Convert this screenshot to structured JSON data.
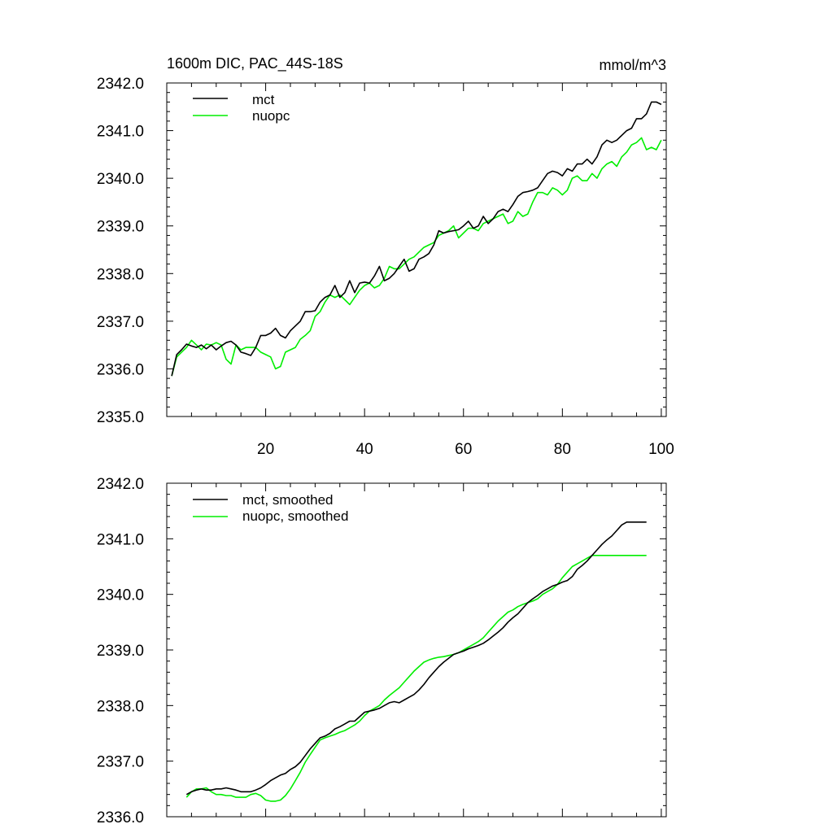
{
  "chart_data": [
    {
      "type": "line",
      "title": "1600m DIC, PAC_44S-18S",
      "units": "mmol/m^3",
      "xlim": [
        0,
        101
      ],
      "ylim": [
        2335.0,
        2342.0
      ],
      "xticks": [
        20,
        40,
        60,
        80,
        100
      ],
      "xtick_labels": [
        "20",
        "40",
        "60",
        "80",
        "100"
      ],
      "yticks": [
        2335.0,
        2336.0,
        2337.0,
        2338.0,
        2339.0,
        2340.0,
        2341.0,
        2342.0
      ],
      "ytick_labels": [
        "2335.0",
        "2336.0",
        "2337.0",
        "2338.0",
        "2339.0",
        "2340.0",
        "2341.0",
        "2342.0"
      ],
      "legend_position": "top-left",
      "series": [
        {
          "name": "mct",
          "color": "#000000",
          "x": [
            1,
            2,
            3,
            4,
            5,
            6,
            7,
            8,
            9,
            10,
            11,
            12,
            13,
            14,
            15,
            16,
            17,
            18,
            19,
            20,
            21,
            22,
            23,
            24,
            25,
            26,
            27,
            28,
            29,
            30,
            31,
            32,
            33,
            34,
            35,
            36,
            37,
            38,
            39,
            40,
            41,
            42,
            43,
            44,
            45,
            46,
            47,
            48,
            49,
            50,
            51,
            52,
            53,
            54,
            55,
            56,
            57,
            58,
            59,
            60,
            61,
            62,
            63,
            64,
            65,
            66,
            67,
            68,
            69,
            70,
            71,
            72,
            73,
            74,
            75,
            76,
            77,
            78,
            79,
            80,
            81,
            82,
            83,
            84,
            85,
            86,
            87,
            88,
            89,
            90,
            91,
            92,
            93,
            94,
            95,
            96,
            97,
            98,
            99,
            100
          ],
          "y": [
            2335.85,
            2336.3,
            2336.4,
            2336.52,
            2336.48,
            2336.45,
            2336.5,
            2336.42,
            2336.5,
            2336.4,
            2336.48,
            2336.55,
            2336.58,
            2336.5,
            2336.35,
            2336.32,
            2336.28,
            2336.45,
            2336.7,
            2336.7,
            2336.75,
            2336.85,
            2336.7,
            2336.65,
            2336.8,
            2336.9,
            2337.0,
            2337.2,
            2337.2,
            2337.22,
            2337.4,
            2337.5,
            2337.55,
            2337.75,
            2337.5,
            2337.6,
            2337.85,
            2337.6,
            2337.8,
            2337.82,
            2337.8,
            2337.95,
            2338.15,
            2337.85,
            2337.9,
            2338.0,
            2338.15,
            2338.3,
            2338.05,
            2338.1,
            2338.3,
            2338.35,
            2338.42,
            2338.6,
            2338.9,
            2338.85,
            2338.88,
            2338.9,
            2338.92,
            2339.0,
            2339.1,
            2338.95,
            2339.0,
            2339.2,
            2339.05,
            2339.15,
            2339.3,
            2339.35,
            2339.3,
            2339.45,
            2339.62,
            2339.7,
            2339.72,
            2339.75,
            2339.8,
            2339.95,
            2340.1,
            2340.15,
            2340.12,
            2340.05,
            2340.2,
            2340.15,
            2340.3,
            2340.3,
            2340.4,
            2340.3,
            2340.45,
            2340.7,
            2340.8,
            2340.75,
            2340.8,
            2340.9,
            2341.0,
            2341.05,
            2341.25,
            2341.25,
            2341.35,
            2341.6,
            2341.6,
            2341.55
          ]
        },
        {
          "name": "nuopc",
          "color": "#00ee00",
          "x": [
            1,
            2,
            3,
            4,
            5,
            6,
            7,
            8,
            9,
            10,
            11,
            12,
            13,
            14,
            15,
            16,
            17,
            18,
            19,
            20,
            21,
            22,
            23,
            24,
            25,
            26,
            27,
            28,
            29,
            30,
            31,
            32,
            33,
            34,
            35,
            36,
            37,
            38,
            39,
            40,
            41,
            42,
            43,
            44,
            45,
            46,
            47,
            48,
            49,
            50,
            51,
            52,
            53,
            54,
            55,
            56,
            57,
            58,
            59,
            60,
            61,
            62,
            63,
            64,
            65,
            66,
            67,
            68,
            69,
            70,
            71,
            72,
            73,
            74,
            75,
            76,
            77,
            78,
            79,
            80,
            81,
            82,
            83,
            84,
            85,
            86,
            87,
            88,
            89,
            90,
            91,
            92,
            93,
            94,
            95,
            96,
            97,
            98,
            99,
            100
          ],
          "y": [
            2335.85,
            2336.25,
            2336.35,
            2336.45,
            2336.6,
            2336.5,
            2336.4,
            2336.52,
            2336.5,
            2336.55,
            2336.5,
            2336.2,
            2336.1,
            2336.5,
            2336.4,
            2336.45,
            2336.45,
            2336.45,
            2336.35,
            2336.3,
            2336.25,
            2336.0,
            2336.05,
            2336.35,
            2336.4,
            2336.45,
            2336.62,
            2336.7,
            2336.8,
            2337.1,
            2337.2,
            2337.4,
            2337.55,
            2337.5,
            2337.55,
            2337.45,
            2337.35,
            2337.5,
            2337.65,
            2337.75,
            2337.8,
            2337.7,
            2337.75,
            2337.9,
            2338.15,
            2338.1,
            2338.1,
            2338.2,
            2338.3,
            2338.35,
            2338.45,
            2338.55,
            2338.6,
            2338.65,
            2338.8,
            2338.85,
            2338.9,
            2339.0,
            2338.75,
            2338.85,
            2338.95,
            2338.95,
            2338.9,
            2339.05,
            2339.1,
            2339.15,
            2339.2,
            2339.25,
            2339.05,
            2339.1,
            2339.3,
            2339.2,
            2339.25,
            2339.5,
            2339.7,
            2339.7,
            2339.65,
            2339.8,
            2339.75,
            2339.65,
            2339.75,
            2340.0,
            2340.05,
            2339.95,
            2339.95,
            2340.1,
            2340.0,
            2340.2,
            2340.3,
            2340.35,
            2340.25,
            2340.45,
            2340.55,
            2340.7,
            2340.75,
            2340.85,
            2340.6,
            2340.65,
            2340.6,
            2340.8
          ]
        }
      ]
    },
    {
      "type": "line",
      "title": "",
      "units": "",
      "xlim": [
        0,
        101
      ],
      "ylim": [
        2336.0,
        2342.0
      ],
      "xticks": [
        20,
        40,
        60,
        80,
        100
      ],
      "xtick_labels": [],
      "yticks": [
        2336.0,
        2337.0,
        2338.0,
        2339.0,
        2340.0,
        2341.0,
        2342.0
      ],
      "ytick_labels": [
        "2336.0",
        "2337.0",
        "2338.0",
        "2339.0",
        "2340.0",
        "2341.0",
        "2342.0"
      ],
      "legend_position": "top-left",
      "series": [
        {
          "name": "mct, smoothed",
          "color": "#000000",
          "x": [
            4,
            5,
            6,
            7,
            8,
            9,
            10,
            11,
            12,
            13,
            14,
            15,
            16,
            17,
            18,
            19,
            20,
            21,
            22,
            23,
            24,
            25,
            26,
            27,
            28,
            29,
            30,
            31,
            32,
            33,
            34,
            35,
            36,
            37,
            38,
            39,
            40,
            41,
            42,
            43,
            44,
            45,
            46,
            47,
            48,
            49,
            50,
            51,
            52,
            53,
            54,
            55,
            56,
            57,
            58,
            59,
            60,
            61,
            62,
            63,
            64,
            65,
            66,
            67,
            68,
            69,
            70,
            71,
            72,
            73,
            74,
            75,
            76,
            77,
            78,
            79,
            80,
            81,
            82,
            83,
            84,
            85,
            86,
            87,
            88,
            89,
            90,
            91,
            92,
            93,
            94,
            95,
            96,
            97
          ],
          "y": [
            2336.4,
            2336.45,
            2336.48,
            2336.5,
            2336.48,
            2336.48,
            2336.5,
            2336.5,
            2336.52,
            2336.5,
            2336.48,
            2336.45,
            2336.45,
            2336.45,
            2336.48,
            2336.52,
            2336.58,
            2336.65,
            2336.7,
            2336.75,
            2336.78,
            2336.85,
            2336.9,
            2336.98,
            2337.1,
            2337.22,
            2337.32,
            2337.42,
            2337.45,
            2337.5,
            2337.58,
            2337.62,
            2337.67,
            2337.72,
            2337.72,
            2337.8,
            2337.88,
            2337.9,
            2337.92,
            2337.95,
            2338.0,
            2338.05,
            2338.07,
            2338.05,
            2338.1,
            2338.15,
            2338.2,
            2338.28,
            2338.38,
            2338.5,
            2338.6,
            2338.7,
            2338.78,
            2338.85,
            2338.92,
            2338.95,
            2338.98,
            2339.02,
            2339.05,
            2339.08,
            2339.12,
            2339.18,
            2339.25,
            2339.32,
            2339.4,
            2339.5,
            2339.58,
            2339.65,
            2339.75,
            2339.85,
            2339.92,
            2339.98,
            2340.05,
            2340.1,
            2340.15,
            2340.18,
            2340.22,
            2340.25,
            2340.32,
            2340.45,
            2340.52,
            2340.6,
            2340.7,
            2340.8,
            2340.9,
            2340.98,
            2341.05,
            2341.15,
            2341.25,
            2341.3,
            2341.3,
            2341.3,
            2341.3,
            2341.3
          ]
        },
        {
          "name": "nuopc, smoothed",
          "color": "#00ee00",
          "x": [
            4,
            5,
            6,
            7,
            8,
            9,
            10,
            11,
            12,
            13,
            14,
            15,
            16,
            17,
            18,
            19,
            20,
            21,
            22,
            23,
            24,
            25,
            26,
            27,
            28,
            29,
            30,
            31,
            32,
            33,
            34,
            35,
            36,
            37,
            38,
            39,
            40,
            41,
            42,
            43,
            44,
            45,
            46,
            47,
            48,
            49,
            50,
            51,
            52,
            53,
            54,
            55,
            56,
            57,
            58,
            59,
            60,
            61,
            62,
            63,
            64,
            65,
            66,
            67,
            68,
            69,
            70,
            71,
            72,
            73,
            74,
            75,
            76,
            77,
            78,
            79,
            80,
            81,
            82,
            83,
            84,
            85,
            86,
            87,
            88,
            89,
            90,
            91,
            92,
            93,
            94,
            95,
            96,
            97
          ],
          "y": [
            2336.35,
            2336.45,
            2336.5,
            2336.5,
            2336.52,
            2336.45,
            2336.4,
            2336.4,
            2336.38,
            2336.38,
            2336.35,
            2336.35,
            2336.35,
            2336.4,
            2336.42,
            2336.38,
            2336.3,
            2336.28,
            2336.28,
            2336.3,
            2336.38,
            2336.5,
            2336.65,
            2336.8,
            2336.98,
            2337.12,
            2337.25,
            2337.38,
            2337.42,
            2337.45,
            2337.48,
            2337.52,
            2337.55,
            2337.6,
            2337.65,
            2337.72,
            2337.82,
            2337.9,
            2337.95,
            2338.0,
            2338.1,
            2338.18,
            2338.25,
            2338.32,
            2338.42,
            2338.52,
            2338.62,
            2338.7,
            2338.78,
            2338.82,
            2338.85,
            2338.87,
            2338.88,
            2338.9,
            2338.92,
            2338.95,
            2339.0,
            2339.05,
            2339.1,
            2339.15,
            2339.22,
            2339.32,
            2339.42,
            2339.52,
            2339.6,
            2339.68,
            2339.72,
            2339.78,
            2339.82,
            2339.85,
            2339.88,
            2339.92,
            2340.0,
            2340.05,
            2340.1,
            2340.18,
            2340.3,
            2340.4,
            2340.5,
            2340.55,
            2340.6,
            2340.65,
            2340.7,
            2340.7,
            2340.7,
            2340.7,
            2340.7,
            2340.7,
            2340.7,
            2340.7,
            2340.7,
            2340.7,
            2340.7,
            2340.7
          ]
        }
      ]
    }
  ]
}
